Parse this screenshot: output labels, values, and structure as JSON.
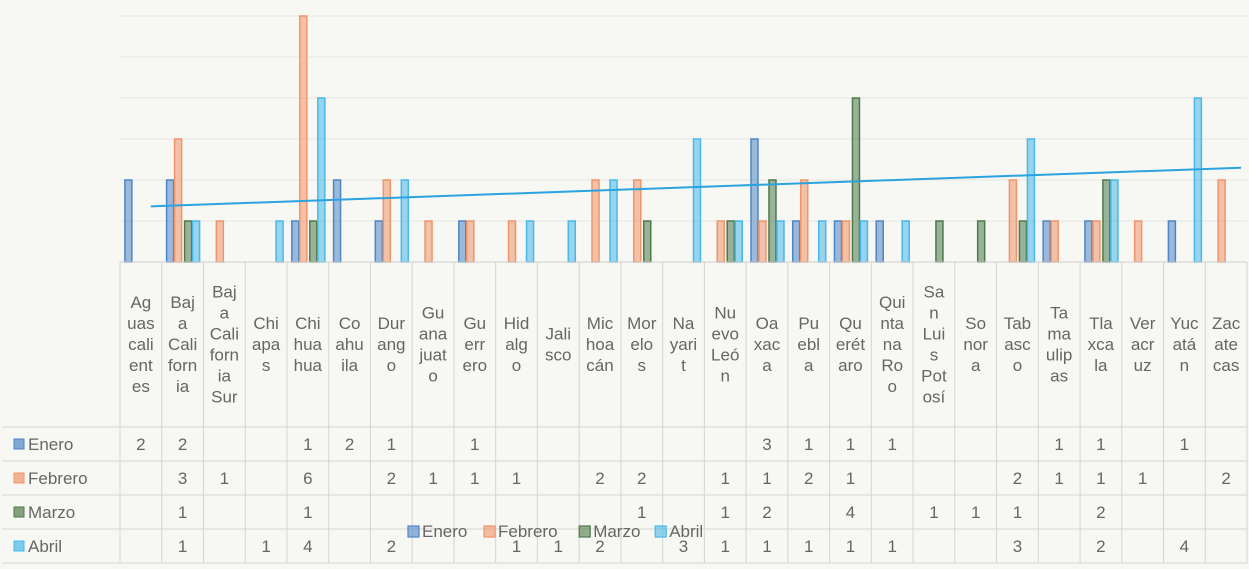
{
  "chart_data": {
    "type": "bar",
    "categories": [
      "Aguascalientes",
      "Baja California",
      "Baja California Sur",
      "Chiapas",
      "Chihuahua",
      "Coahuila",
      "Durango",
      "Guanajuato",
      "Guerrero",
      "Hidalgo",
      "Jalisco",
      "Michoacán",
      "Morelos",
      "Nayarit",
      "Nuevo León",
      "Oaxaca",
      "Puebla",
      "Querétaro",
      "Quintana Roo",
      "San Luis Potosí",
      "Sonora",
      "Tabasco",
      "Tamaulipas",
      "Tlaxcala",
      "Veracruz",
      "Yucatán",
      "Zacatecas"
    ],
    "category_labels": [
      [
        "Ag",
        "uas",
        "cali",
        "ent",
        "es"
      ],
      [
        "Baj",
        "a",
        "Cali",
        "forn",
        "ia"
      ],
      [
        "Baj",
        "a",
        "Cali",
        "forn",
        "ia",
        "Sur"
      ],
      [
        "Chi",
        "apa",
        "s"
      ],
      [
        "Chi",
        "hua",
        "hua"
      ],
      [
        "Co",
        "ahu",
        "ila"
      ],
      [
        "Dur",
        "ang",
        "o"
      ],
      [
        "Gu",
        "ana",
        "juat",
        "o"
      ],
      [
        "Gu",
        "err",
        "ero"
      ],
      [
        "Hid",
        "alg",
        "o"
      ],
      [
        "Jali",
        "sco"
      ],
      [
        "Mic",
        "hoa",
        "cán"
      ],
      [
        "Mor",
        "elo",
        "s"
      ],
      [
        "Na",
        "yari",
        "t"
      ],
      [
        "Nu",
        "evo",
        "Leó",
        "n"
      ],
      [
        "Oa",
        "xac",
        "a"
      ],
      [
        "Pu",
        "ebl",
        "a"
      ],
      [
        "Qu",
        "erét",
        "aro"
      ],
      [
        "Qui",
        "nta",
        "na",
        "Ro",
        "o"
      ],
      [
        "Sa",
        "n",
        "Lui",
        "s",
        "Pot",
        "osí"
      ],
      [
        "So",
        "nor",
        "a"
      ],
      [
        "Tab",
        "asc",
        "o"
      ],
      [
        "Ta",
        "ma",
        "ulip",
        "as"
      ],
      [
        "Tla",
        "xca",
        "la"
      ],
      [
        "Ver",
        "acr",
        "uz"
      ],
      [
        "Yuc",
        "atá",
        "n"
      ],
      [
        "Zac",
        "ate",
        "cas"
      ]
    ],
    "series": [
      {
        "name": "Enero",
        "color": "#4f86c6",
        "values": [
          2,
          2,
          null,
          null,
          1,
          2,
          1,
          null,
          1,
          null,
          null,
          null,
          null,
          null,
          null,
          3,
          1,
          1,
          1,
          null,
          null,
          null,
          1,
          1,
          null,
          1,
          null
        ]
      },
      {
        "name": "Febrero",
        "color": "#f0956a",
        "values": [
          null,
          3,
          1,
          null,
          6,
          null,
          2,
          1,
          1,
          1,
          null,
          2,
          2,
          null,
          1,
          1,
          2,
          1,
          null,
          null,
          null,
          2,
          1,
          1,
          1,
          null,
          2
        ]
      },
      {
        "name": "Marzo",
        "color": "#4e7a4a",
        "values": [
          null,
          1,
          null,
          null,
          1,
          null,
          null,
          null,
          null,
          null,
          null,
          null,
          1,
          null,
          1,
          2,
          null,
          4,
          null,
          1,
          1,
          1,
          null,
          2,
          null,
          null,
          null
        ]
      },
      {
        "name": "Abril",
        "color": "#49b8ea",
        "values": [
          null,
          1,
          null,
          1,
          4,
          null,
          2,
          null,
          null,
          1,
          1,
          2,
          null,
          3,
          1,
          1,
          1,
          1,
          1,
          null,
          null,
          3,
          null,
          2,
          null,
          4,
          null
        ]
      }
    ],
    "trendline": {
      "series": "Abril",
      "color": "#2aa3e0"
    },
    "ylim": [
      0,
      6
    ],
    "grid": true,
    "legend": "bottom-center",
    "title": "",
    "xlabel": "",
    "ylabel": ""
  }
}
